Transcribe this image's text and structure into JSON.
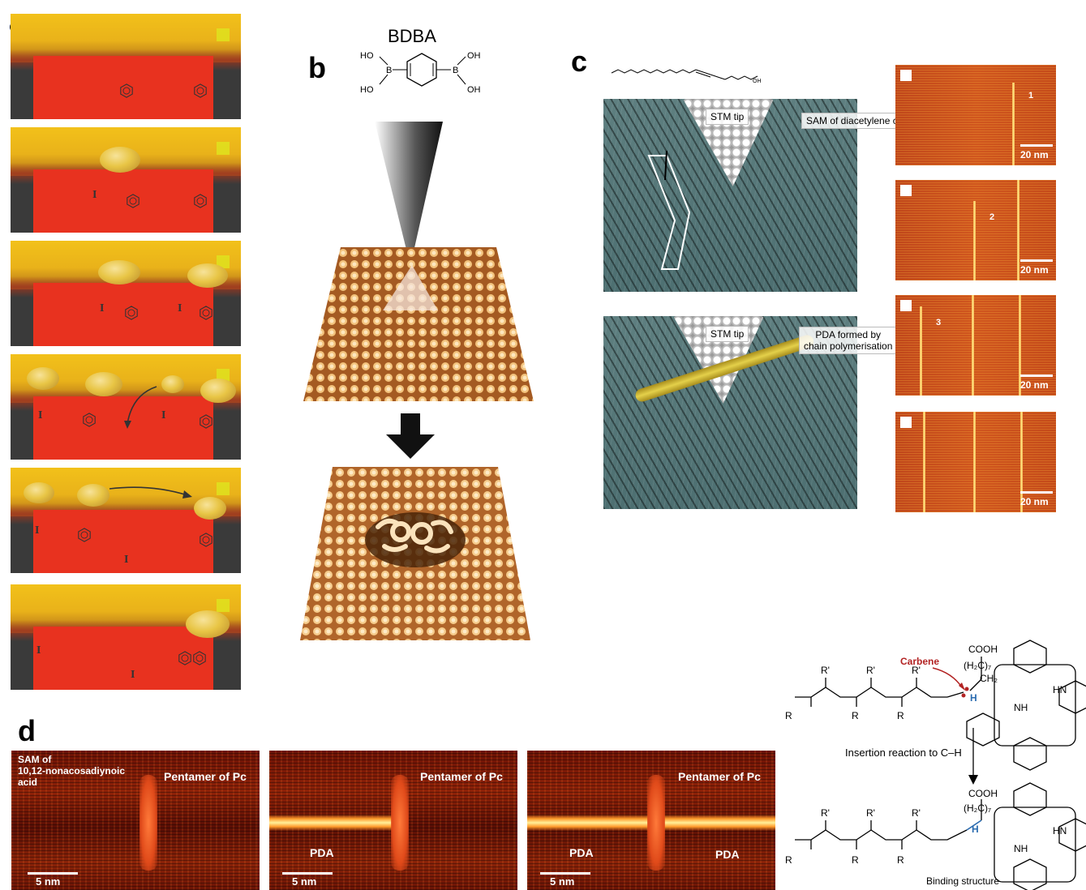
{
  "panels": {
    "a": {
      "letter": "a"
    },
    "b": {
      "letter": "b",
      "molecule": "BDBA"
    },
    "c": {
      "letter": "c",
      "stm_tip_1": "STM tip",
      "stm_tip_2": "STM tip",
      "sam_label": "SAM of diacetylene compound",
      "pda_label_1": "PDA formed by",
      "pda_label_2": "chain polymerisation",
      "afm_scale": "20 nm",
      "afm_markers": [
        "1",
        "2",
        "3"
      ]
    },
    "d": {
      "letter": "d",
      "sam_line1": "SAM of",
      "sam_line2": "10,12-nonacosadiynoic",
      "sam_line3": "acid",
      "pentamer": "Pentamer of Pc",
      "pda": "PDA",
      "scale": "5 nm",
      "carbene": "Carbene",
      "cooh": "COOH",
      "h2c7": "(H₂C)₇",
      "ch2": "CH₂",
      "h": "H",
      "r": "R",
      "rprime": "R'",
      "nh": "NH",
      "hn": "HN",
      "n": "N",
      "insertion": "Insertion reaction to C–H",
      "binding": "Binding structure"
    }
  },
  "colors": {
    "carbene": "#b22222",
    "hydrogen": "#2b6cb0",
    "afm_line": "#ffe58a",
    "pda": "#fff09a"
  }
}
